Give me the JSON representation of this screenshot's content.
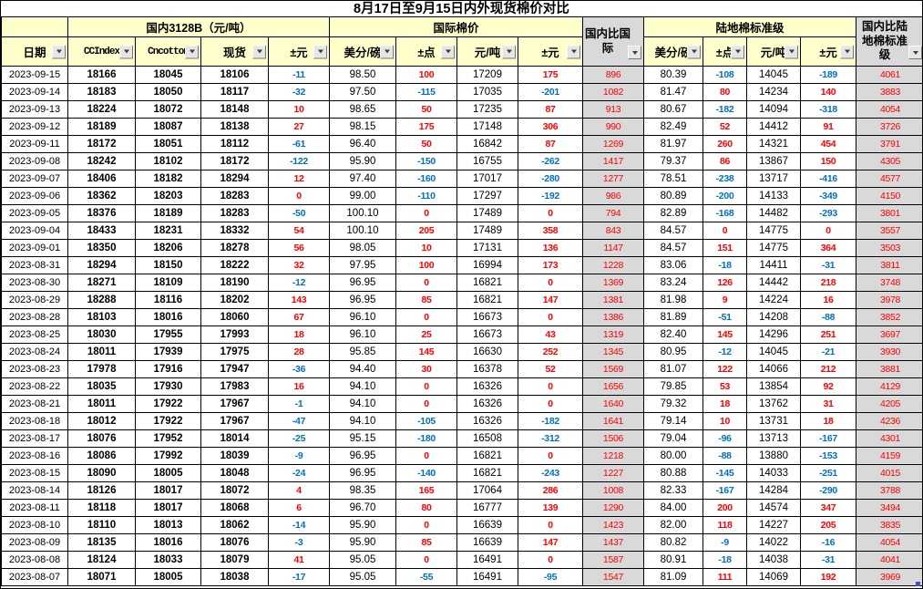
{
  "title": "8月17日至9月15日内外现货棉价对比",
  "colors": {
    "header_bg": "#FFFFCC",
    "compare_bg": "#D9D9D9",
    "positive": "#FF0000",
    "negative": "#0070C0"
  },
  "icons": {
    "filter_dropdown": "▼"
  },
  "table": {
    "group_headers": {
      "domestic": "国内3128B（元/吨）",
      "international": "国际棉价",
      "domestic_vs_international": "国内比国际",
      "upland_standard": "陆地棉标准级",
      "domestic_vs_upland": "国内比陆地棉标准级"
    },
    "column_headers": [
      "日期",
      "CCIndex",
      "Cncotton",
      "现货",
      "±元",
      "美分/磅",
      "±点",
      "元/吨",
      "±元",
      "美分/磅",
      "±点",
      "元/吨",
      "±元"
    ],
    "rows": [
      [
        "2023-09-15",
        "18166",
        "18045",
        "18106",
        "-11",
        "98.50",
        "100",
        "17209",
        "175",
        "896",
        "80.39",
        "-108",
        "14045",
        "-189",
        "4061"
      ],
      [
        "2023-09-14",
        "18183",
        "18050",
        "18117",
        "-32",
        "97.50",
        "-115",
        "17035",
        "-201",
        "1082",
        "81.47",
        "80",
        "14234",
        "140",
        "3883"
      ],
      [
        "2023-09-13",
        "18224",
        "18072",
        "18148",
        "10",
        "98.65",
        "50",
        "17235",
        "87",
        "913",
        "80.67",
        "-182",
        "14094",
        "-318",
        "4054"
      ],
      [
        "2023-09-12",
        "18189",
        "18087",
        "18138",
        "27",
        "98.15",
        "175",
        "17148",
        "306",
        "990",
        "82.49",
        "52",
        "14412",
        "91",
        "3726"
      ],
      [
        "2023-09-11",
        "18172",
        "18051",
        "18112",
        "-61",
        "96.40",
        "50",
        "16842",
        "87",
        "1269",
        "81.97",
        "260",
        "14321",
        "454",
        "3791"
      ],
      [
        "2023-09-08",
        "18242",
        "18102",
        "18172",
        "-122",
        "95.90",
        "-150",
        "16755",
        "-262",
        "1417",
        "79.37",
        "86",
        "13867",
        "150",
        "4305"
      ],
      [
        "2023-09-07",
        "18406",
        "18182",
        "18294",
        "12",
        "97.40",
        "-160",
        "17017",
        "-280",
        "1277",
        "78.51",
        "-238",
        "13717",
        "-416",
        "4577"
      ],
      [
        "2023-09-06",
        "18362",
        "18203",
        "18283",
        "0",
        "99.00",
        "-110",
        "17297",
        "-192",
        "986",
        "80.89",
        "-200",
        "14133",
        "-349",
        "4150"
      ],
      [
        "2023-09-05",
        "18376",
        "18189",
        "18283",
        "-50",
        "100.10",
        "0",
        "17489",
        "0",
        "794",
        "82.89",
        "-168",
        "14482",
        "-293",
        "3801"
      ],
      [
        "2023-09-04",
        "18433",
        "18231",
        "18332",
        "54",
        "100.10",
        "205",
        "17489",
        "358",
        "843",
        "84.57",
        "0",
        "14775",
        "0",
        "3557"
      ],
      [
        "2023-09-01",
        "18350",
        "18206",
        "18278",
        "56",
        "98.05",
        "10",
        "17131",
        "136",
        "1147",
        "84.57",
        "151",
        "14775",
        "364",
        "3503"
      ],
      [
        "2023-08-31",
        "18294",
        "18150",
        "18222",
        "32",
        "97.95",
        "100",
        "16994",
        "173",
        "1228",
        "83.06",
        "-18",
        "14411",
        "-31",
        "3811"
      ],
      [
        "2023-08-30",
        "18271",
        "18109",
        "18190",
        "-12",
        "96.95",
        "0",
        "16821",
        "0",
        "1369",
        "83.24",
        "126",
        "14442",
        "218",
        "3748"
      ],
      [
        "2023-08-29",
        "18288",
        "18116",
        "18202",
        "143",
        "96.95",
        "85",
        "16821",
        "147",
        "1381",
        "81.98",
        "9",
        "14224",
        "16",
        "3978"
      ],
      [
        "2023-08-28",
        "18103",
        "18016",
        "18060",
        "67",
        "96.10",
        "0",
        "16673",
        "0",
        "1386",
        "81.89",
        "-51",
        "14208",
        "-88",
        "3852"
      ],
      [
        "2023-08-25",
        "18030",
        "17955",
        "17993",
        "18",
        "96.10",
        "25",
        "16673",
        "43",
        "1319",
        "82.40",
        "145",
        "14296",
        "251",
        "3697"
      ],
      [
        "2023-08-24",
        "18011",
        "17939",
        "17975",
        "28",
        "95.85",
        "145",
        "16630",
        "252",
        "1345",
        "80.95",
        "-12",
        "14045",
        "-21",
        "3930"
      ],
      [
        "2023-08-23",
        "17978",
        "17916",
        "17947",
        "-36",
        "94.40",
        "30",
        "16378",
        "52",
        "1569",
        "81.07",
        "122",
        "14066",
        "212",
        "3881"
      ],
      [
        "2023-08-22",
        "18035",
        "17930",
        "17983",
        "16",
        "94.10",
        "0",
        "16326",
        "0",
        "1656",
        "79.85",
        "53",
        "13854",
        "92",
        "4129"
      ],
      [
        "2023-08-21",
        "18011",
        "17922",
        "17967",
        "-1",
        "94.10",
        "0",
        "16326",
        "0",
        "1640",
        "79.32",
        "18",
        "13762",
        "31",
        "4205"
      ],
      [
        "2023-08-18",
        "18012",
        "17922",
        "17967",
        "-47",
        "94.10",
        "-105",
        "16326",
        "-182",
        "1641",
        "79.14",
        "10",
        "13731",
        "18",
        "4236"
      ],
      [
        "2023-08-17",
        "18076",
        "17952",
        "18014",
        "-25",
        "95.15",
        "-180",
        "16508",
        "-312",
        "1506",
        "79.04",
        "-96",
        "13713",
        "-167",
        "4301"
      ],
      [
        "2023-08-16",
        "18086",
        "17992",
        "18039",
        "-9",
        "96.95",
        "0",
        "16821",
        "0",
        "1218",
        "80.00",
        "-88",
        "13880",
        "-153",
        "4159"
      ],
      [
        "2023-08-15",
        "18090",
        "18005",
        "18048",
        "-24",
        "96.95",
        "-140",
        "16821",
        "-243",
        "1227",
        "80.88",
        "-145",
        "14033",
        "-251",
        "4015"
      ],
      [
        "2023-08-14",
        "18126",
        "18017",
        "18072",
        "4",
        "98.35",
        "165",
        "17064",
        "286",
        "1008",
        "82.33",
        "-167",
        "14284",
        "-290",
        "3788"
      ],
      [
        "2023-08-11",
        "18118",
        "18017",
        "18068",
        "6",
        "96.70",
        "80",
        "16777",
        "139",
        "1290",
        "84.00",
        "200",
        "14574",
        "347",
        "3494"
      ],
      [
        "2023-08-10",
        "18110",
        "18013",
        "18062",
        "-14",
        "95.90",
        "0",
        "16639",
        "0",
        "1423",
        "82.00",
        "118",
        "14227",
        "205",
        "3835"
      ],
      [
        "2023-08-09",
        "18135",
        "18016",
        "18076",
        "-3",
        "95.90",
        "85",
        "16639",
        "147",
        "1437",
        "80.82",
        "-9",
        "14022",
        "-16",
        "4054"
      ],
      [
        "2023-08-08",
        "18124",
        "18033",
        "18079",
        "41",
        "95.05",
        "0",
        "16491",
        "0",
        "1587",
        "80.91",
        "-18",
        "14038",
        "-31",
        "4041"
      ],
      [
        "2023-08-07",
        "18071",
        "18005",
        "18038",
        "-17",
        "95.05",
        "-55",
        "16491",
        "-95",
        "1547",
        "81.09",
        "111",
        "14069",
        "192",
        "3969"
      ]
    ]
  }
}
